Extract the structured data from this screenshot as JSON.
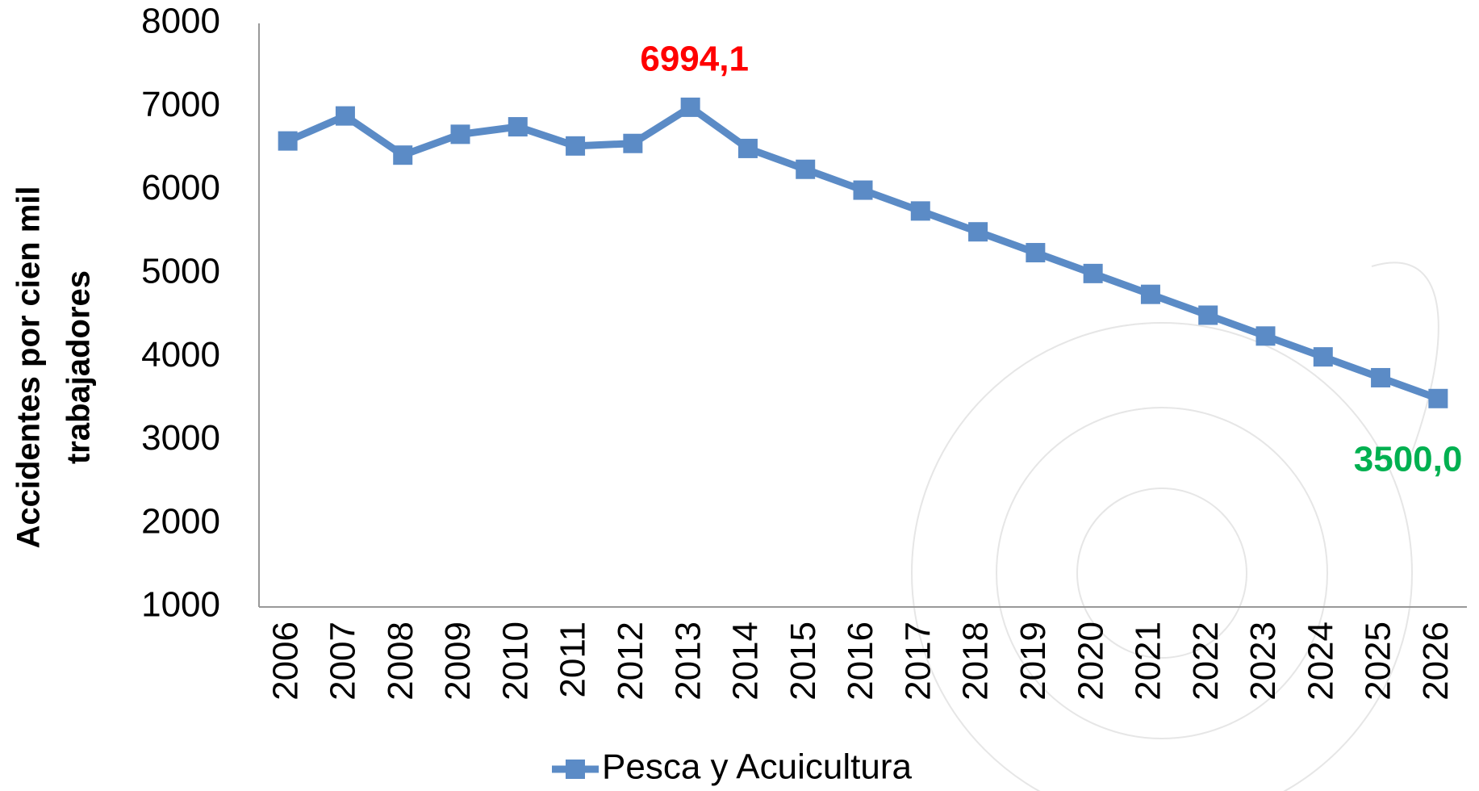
{
  "chart_data": {
    "type": "line",
    "ylabel": [
      "Accidentes por cien mil",
      "trabajadores"
    ],
    "categories": [
      "2006",
      "2007",
      "2008",
      "2009",
      "2010",
      "2011",
      "2012",
      "2013",
      "2014",
      "2015",
      "2016",
      "2017",
      "2018",
      "2019",
      "2020",
      "2021",
      "2022",
      "2023",
      "2024",
      "2025",
      "2026"
    ],
    "series": [
      {
        "name": "Pesca y Acuicultura",
        "color": "#5b8bc6",
        "values": [
          6590,
          6890,
          6420,
          6670,
          6760,
          6530,
          6560,
          6994.1,
          6500,
          6250,
          6000,
          5750,
          5500,
          5250,
          5000,
          4750,
          4500,
          4250,
          4000,
          3750,
          3500
        ],
        "value_labels": [
          null,
          null,
          null,
          null,
          null,
          null,
          null,
          "6994,1",
          null,
          null,
          null,
          null,
          null,
          null,
          null,
          null,
          null,
          null,
          null,
          null,
          "3500,0"
        ],
        "value_label_colors": [
          null,
          null,
          null,
          null,
          null,
          null,
          null,
          "#ff0000",
          null,
          null,
          null,
          null,
          null,
          null,
          null,
          null,
          null,
          null,
          null,
          null,
          "#00b050"
        ]
      }
    ],
    "ylim": [
      1000,
      8000
    ],
    "yticks": [
      1000,
      2000,
      3000,
      4000,
      5000,
      6000,
      7000,
      8000
    ],
    "grid": false,
    "legend": "bottom"
  }
}
